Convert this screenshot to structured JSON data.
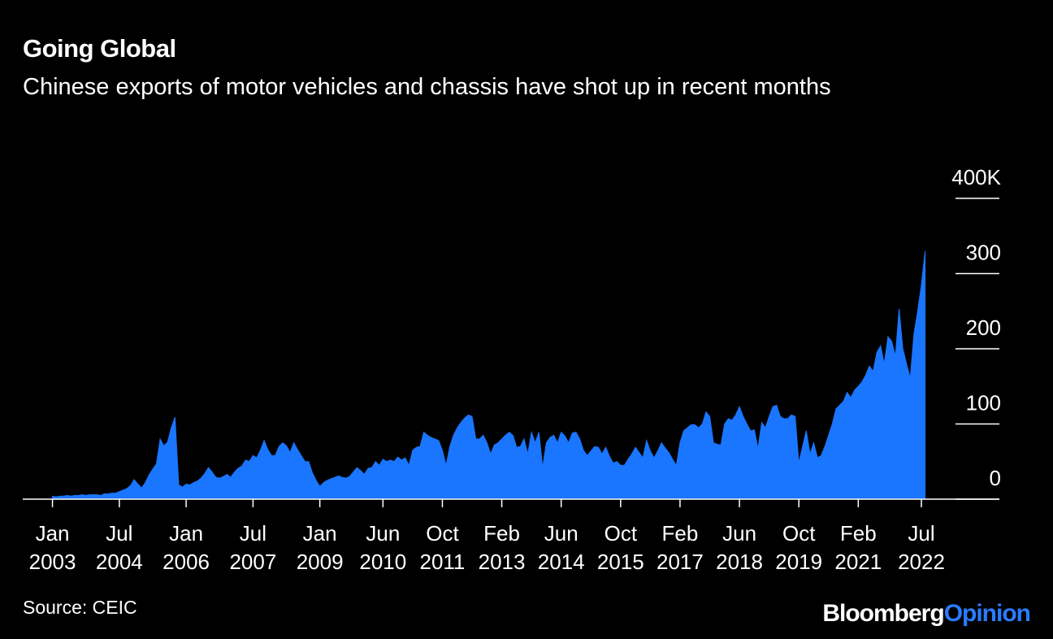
{
  "chart_data": {
    "type": "area",
    "title": "Going Global",
    "subtitle": "Chinese exports of motor vehicles and chassis have shot up in recent months",
    "source": "Source: CEIC",
    "logo": [
      "Bloomberg",
      "Opinion"
    ],
    "color": "#1a75ff",
    "x": [
      "2003-01",
      "2003-02",
      "2003-03",
      "2003-04",
      "2003-05",
      "2003-06",
      "2003-07",
      "2003-08",
      "2003-09",
      "2003-10",
      "2003-11",
      "2003-12",
      "2004-01",
      "2004-02",
      "2004-03",
      "2004-04",
      "2004-05",
      "2004-06",
      "2004-07",
      "2004-08",
      "2004-09",
      "2004-10",
      "2004-11",
      "2004-12",
      "2005-01",
      "2005-02",
      "2005-03",
      "2005-04",
      "2005-05",
      "2005-06",
      "2005-07",
      "2005-08",
      "2005-09",
      "2005-10",
      "2005-11",
      "2005-12",
      "2006-01",
      "2006-02",
      "2006-03",
      "2006-04",
      "2006-05",
      "2006-06",
      "2006-07",
      "2006-08",
      "2006-09",
      "2006-10",
      "2006-11",
      "2006-12",
      "2007-01",
      "2007-02",
      "2007-03",
      "2007-04",
      "2007-05",
      "2007-06",
      "2007-07",
      "2007-08",
      "2007-09",
      "2007-10",
      "2007-11",
      "2007-12",
      "2008-01",
      "2008-02",
      "2008-03",
      "2008-04",
      "2008-05",
      "2008-06",
      "2008-07",
      "2008-08",
      "2008-09",
      "2008-10",
      "2008-11",
      "2008-12",
      "2009-01",
      "2009-02",
      "2009-03",
      "2009-04",
      "2009-05",
      "2009-06",
      "2009-07",
      "2009-08",
      "2009-09",
      "2009-10",
      "2009-11",
      "2009-12",
      "2010-01",
      "2010-02",
      "2010-03",
      "2010-04",
      "2010-05",
      "2010-06",
      "2010-07",
      "2010-08",
      "2010-09",
      "2010-10",
      "2010-11",
      "2010-12",
      "2011-01",
      "2011-02",
      "2011-03",
      "2011-04",
      "2011-05",
      "2011-06",
      "2011-07",
      "2011-08",
      "2011-09",
      "2011-10",
      "2011-11",
      "2011-12",
      "2012-01",
      "2012-02",
      "2012-03",
      "2012-04",
      "2012-05",
      "2012-06",
      "2012-07",
      "2012-08",
      "2012-09",
      "2012-10",
      "2012-11",
      "2012-12",
      "2013-01",
      "2013-02",
      "2013-03",
      "2013-04",
      "2013-05",
      "2013-06",
      "2013-07",
      "2013-08",
      "2013-09",
      "2013-10",
      "2013-11",
      "2013-12",
      "2014-01",
      "2014-02",
      "2014-03",
      "2014-04",
      "2014-05",
      "2014-06",
      "2014-07",
      "2014-08",
      "2014-09",
      "2014-10",
      "2014-11",
      "2014-12",
      "2015-01",
      "2015-02",
      "2015-03",
      "2015-04",
      "2015-05",
      "2015-06",
      "2015-07",
      "2015-08",
      "2015-09",
      "2015-10",
      "2015-11",
      "2015-12",
      "2016-01",
      "2016-02",
      "2016-03",
      "2016-04",
      "2016-05",
      "2016-06",
      "2016-07",
      "2016-08",
      "2016-09",
      "2016-10",
      "2016-11",
      "2016-12",
      "2017-01",
      "2017-02",
      "2017-03",
      "2017-04",
      "2017-05",
      "2017-06",
      "2017-07",
      "2017-08",
      "2017-09",
      "2017-10",
      "2017-11",
      "2017-12",
      "2018-01",
      "2018-02",
      "2018-03",
      "2018-04",
      "2018-05",
      "2018-06",
      "2018-07",
      "2018-08",
      "2018-09",
      "2018-10",
      "2018-11",
      "2018-12",
      "2019-01",
      "2019-02",
      "2019-03",
      "2019-04",
      "2019-05",
      "2019-06",
      "2019-07",
      "2019-08",
      "2019-09",
      "2019-10",
      "2019-11",
      "2019-12",
      "2020-01",
      "2020-02",
      "2020-03",
      "2020-04",
      "2020-05",
      "2020-06",
      "2020-07",
      "2020-08",
      "2020-09",
      "2020-10",
      "2020-11",
      "2020-12",
      "2021-01",
      "2021-02",
      "2021-03",
      "2021-04",
      "2021-05",
      "2021-06",
      "2021-07",
      "2021-08",
      "2021-09",
      "2021-10",
      "2021-11",
      "2021-12",
      "2022-01",
      "2022-02",
      "2022-03",
      "2022-04",
      "2022-05",
      "2022-06",
      "2022-07",
      "2022-08"
    ],
    "values": [
      4,
      3,
      4,
      4,
      5,
      4,
      5,
      5,
      6,
      5,
      6,
      6,
      6,
      5,
      7,
      7,
      8,
      8,
      10,
      12,
      14,
      18,
      26,
      20,
      15,
      22,
      32,
      40,
      47,
      80,
      71,
      76,
      95,
      109,
      19,
      16,
      20,
      19,
      22,
      24,
      28,
      34,
      42,
      36,
      29,
      28,
      30,
      33,
      29,
      36,
      41,
      44,
      52,
      50,
      58,
      55,
      65,
      78,
      66,
      58,
      58,
      70,
      75,
      71,
      62,
      75,
      66,
      58,
      50,
      50,
      35,
      25,
      17,
      22,
      25,
      27,
      29,
      31,
      29,
      28,
      30,
      36,
      42,
      38,
      33,
      41,
      42,
      50,
      45,
      53,
      50,
      52,
      50,
      56,
      52,
      55,
      45,
      65,
      69,
      70,
      89,
      85,
      82,
      80,
      78,
      65,
      45,
      70,
      85,
      95,
      102,
      108,
      112,
      110,
      80,
      80,
      85,
      75,
      60,
      72,
      75,
      80,
      85,
      89,
      85,
      69,
      70,
      80,
      60,
      89,
      75,
      89,
      42,
      75,
      82,
      85,
      75,
      89,
      84,
      75,
      88,
      89,
      80,
      65,
      58,
      64,
      70,
      69,
      60,
      69,
      57,
      48,
      50,
      45,
      45,
      53,
      60,
      69,
      62,
      55,
      78,
      64,
      55,
      64,
      75,
      68,
      62,
      53,
      45,
      75,
      91,
      95,
      99,
      99,
      95,
      100,
      116,
      110,
      75,
      73,
      72,
      100,
      107,
      105,
      112,
      123,
      110,
      100,
      91,
      92,
      67,
      102,
      95,
      110,
      123,
      125,
      110,
      107,
      107,
      112,
      110,
      48,
      70,
      91,
      60,
      75,
      55,
      58,
      70,
      85,
      100,
      120,
      125,
      130,
      142,
      135,
      145,
      150,
      156,
      165,
      177,
      170,
      195,
      204,
      180,
      216,
      210,
      190,
      253,
      200,
      180,
      161,
      220,
      250,
      285,
      330
    ],
    "xlim": [
      "2002-05",
      "2024-04"
    ],
    "xticks": [
      {
        "value": "2003-01",
        "label": "Jan 2003"
      },
      {
        "value": "2004-07",
        "label": "Jul 2004"
      },
      {
        "value": "2006-01",
        "label": "Jan 2006"
      },
      {
        "value": "2007-07",
        "label": "Jul 2007"
      },
      {
        "value": "2009-01",
        "label": "Jan 2009"
      },
      {
        "value": "2010-06",
        "label": "Jun 2010"
      },
      {
        "value": "2011-10",
        "label": "Oct 2011"
      },
      {
        "value": "2013-02",
        "label": "Feb 2013"
      },
      {
        "value": "2014-06",
        "label": "Jun 2014"
      },
      {
        "value": "2015-10",
        "label": "Oct 2015"
      },
      {
        "value": "2017-02",
        "label": "Feb 2017"
      },
      {
        "value": "2018-06",
        "label": "Jun 2018"
      },
      {
        "value": "2019-10",
        "label": "Oct 2019"
      },
      {
        "value": "2021-02",
        "label": "Feb 2021"
      },
      {
        "value": "2022-07",
        "label": "Jul 2022"
      }
    ],
    "ylim": [
      0,
      400
    ],
    "yticks": [
      0,
      100,
      200,
      300,
      {
        "value": 400,
        "label": "400K"
      }
    ]
  }
}
